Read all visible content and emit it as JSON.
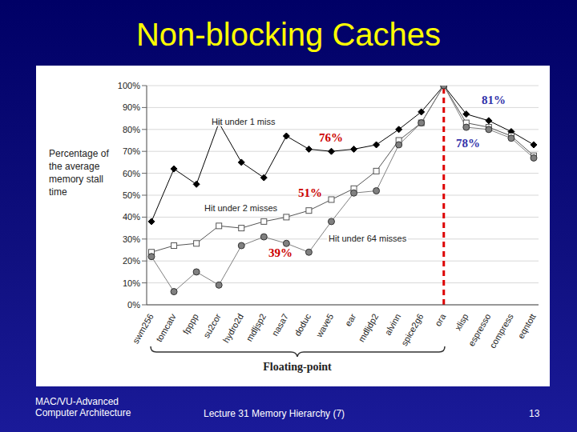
{
  "chart_data": {
    "type": "line",
    "title": "Non-blocking Caches",
    "y_label": "Percentage of the average memory stall time",
    "categories": [
      "swm256",
      "tomcatv",
      "fpppp",
      "su2cor",
      "hydro2d",
      "mdljsp2",
      "nasa7",
      "doduc",
      "wave5",
      "ear",
      "mdljdp2",
      "alvinn",
      "spice2g6",
      "ora",
      "xlisp",
      "espresso",
      "compress",
      "eqntott"
    ],
    "series": [
      {
        "name": "Hit under 1 miss",
        "color": "#000000",
        "marker": "diamond",
        "values": [
          38,
          62,
          55,
          83,
          65,
          58,
          77,
          71,
          70,
          71,
          73,
          80,
          88,
          100,
          87,
          84,
          79,
          73
        ]
      },
      {
        "name": "Hit under 2 misses",
        "color": "#555555",
        "marker": "open_square",
        "values": [
          24,
          27,
          28,
          36,
          35,
          38,
          40,
          43,
          48,
          53,
          61,
          75,
          83,
          100,
          83,
          81,
          77,
          68
        ]
      },
      {
        "name": "Hit under 64 misses",
        "color": "#808080",
        "marker": "circle",
        "values": [
          22,
          6,
          15,
          9,
          27,
          31,
          28,
          24,
          38,
          51,
          52,
          73,
          83,
          100,
          81,
          80,
          76,
          67
        ]
      }
    ],
    "ylim": [
      0,
      100
    ],
    "yticks": [
      {
        "value": 0,
        "label": "0%"
      },
      {
        "value": 10,
        "label": "10%"
      },
      {
        "value": 20,
        "label": "20%"
      },
      {
        "value": 30,
        "label": "30%"
      },
      {
        "value": 40,
        "label": "40%"
      },
      {
        "value": 50,
        "label": "50%"
      },
      {
        "value": 60,
        "label": "60%"
      },
      {
        "value": 70,
        "label": "70%"
      },
      {
        "value": 80,
        "label": "80%"
      },
      {
        "value": 90,
        "label": "90%"
      },
      {
        "value": 100,
        "label": "100%"
      }
    ],
    "grid": true,
    "annotations": [
      "76%",
      "51%",
      "39%",
      "81%",
      "78%"
    ],
    "group_label": "Floating-point"
  },
  "footer": {
    "left": [
      "MAC/VU-Advanced",
      "Computer Architecture"
    ],
    "center": "Lecture 31 Memory Hierarchy (7)",
    "page": "13"
  }
}
